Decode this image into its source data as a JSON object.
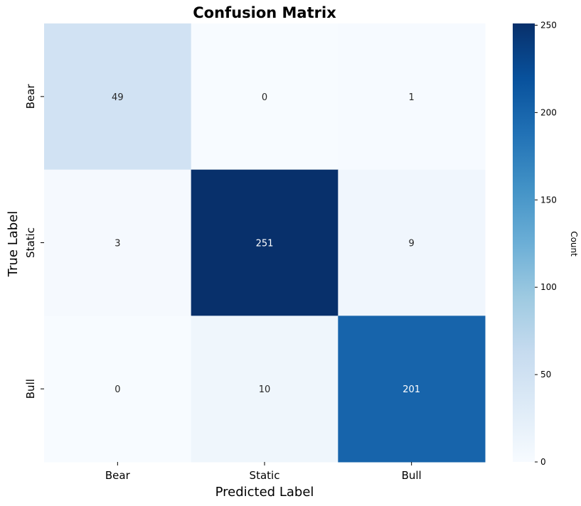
{
  "chart_data": {
    "type": "heatmap",
    "title": "Confusion Matrix",
    "xlabel": "Predicted Label",
    "ylabel": "True Label",
    "x_categories": [
      "Bear",
      "Static",
      "Bull"
    ],
    "y_categories": [
      "Bear",
      "Static",
      "Bull"
    ],
    "values": [
      [
        49,
        0,
        1
      ],
      [
        3,
        251,
        9
      ],
      [
        0,
        10,
        201
      ]
    ],
    "colormap": "Blues",
    "colorbar": {
      "label": "Count",
      "range": [
        0,
        251
      ],
      "ticks": [
        0,
        50,
        100,
        150,
        200,
        250
      ]
    },
    "colors": {
      "low": "#f7fbff",
      "high": "#08306b",
      "text_dark": "#262626",
      "text_light": "#ffffff"
    }
  }
}
